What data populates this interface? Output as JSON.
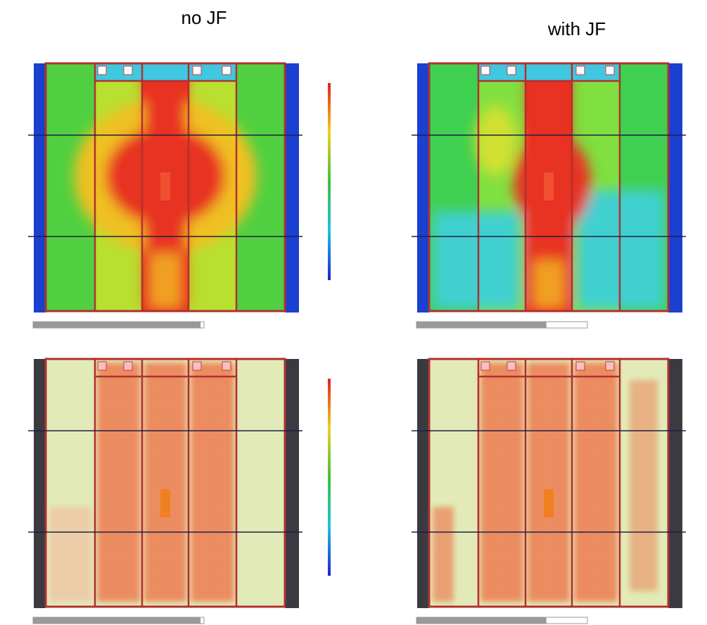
{
  "titles": {
    "left": "no JF",
    "right": "with JF"
  }
}
